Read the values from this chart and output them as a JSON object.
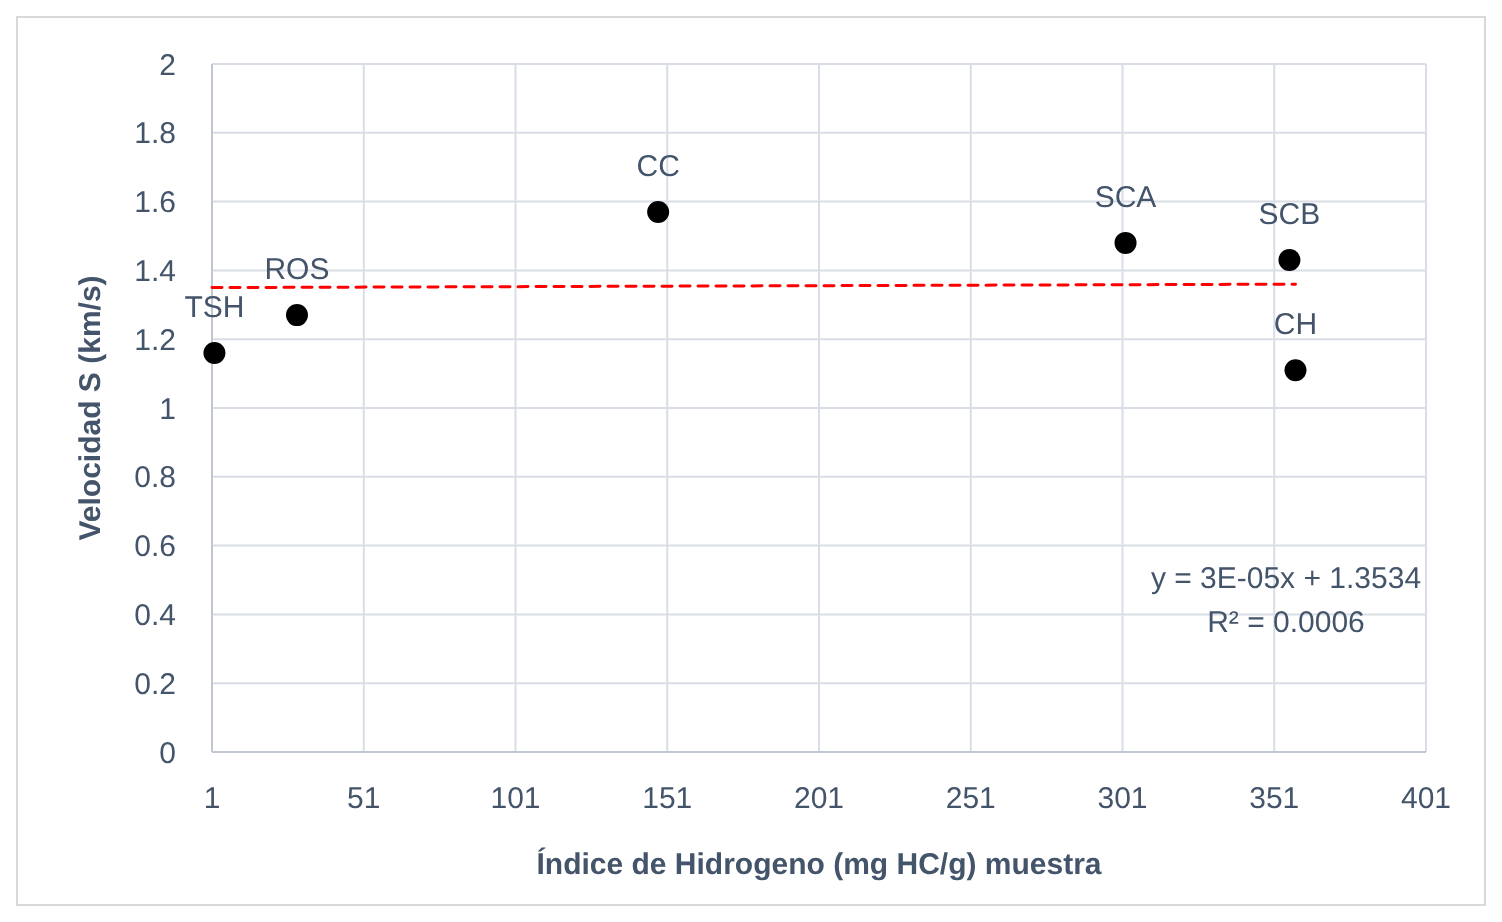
{
  "chart_data": {
    "type": "scatter",
    "xlabel": "Índice de Hidrogeno (mg HC/g) muestra",
    "ylabel": "Velocidad S (km/s)",
    "x": [
      1.8,
      29,
      148,
      302,
      356,
      358
    ],
    "series": [
      {
        "color": "#000000",
        "values": [
          1.16,
          1.27,
          1.57,
          1.48,
          1.43,
          1.11
        ]
      },
      {
        "type": "line",
        "color": "#ff0000",
        "line_style": "dashed",
        "marker": "none",
        "x": [
          1,
          358
        ],
        "values": [
          1.35,
          1.36
        ]
      }
    ],
    "annotations": [
      {
        "text": "TSH",
        "x": 1.8,
        "y": 1.16
      },
      {
        "text": "ROS",
        "x": 29,
        "y": 1.27
      },
      {
        "text": "CC",
        "x": 148,
        "y": 1.57
      },
      {
        "text": "SCA",
        "x": 302,
        "y": 1.48
      },
      {
        "text": "SCB",
        "x": 356,
        "y": 1.43
      },
      {
        "text": "CH",
        "x": 358,
        "y": 1.11
      },
      "y = 3E-05x + 1.3534\nR² = 0.0006"
    ],
    "xlim": [
      1,
      401
    ],
    "xticks": [
      1,
      51,
      101,
      151,
      201,
      251,
      301,
      351,
      401
    ],
    "ylim": [
      0,
      2
    ],
    "yticks": [
      0,
      0.2,
      0.4,
      0.6,
      0.8,
      1,
      1.2,
      1.4,
      1.6,
      1.8,
      2
    ],
    "grid": true,
    "marker": "circle"
  }
}
